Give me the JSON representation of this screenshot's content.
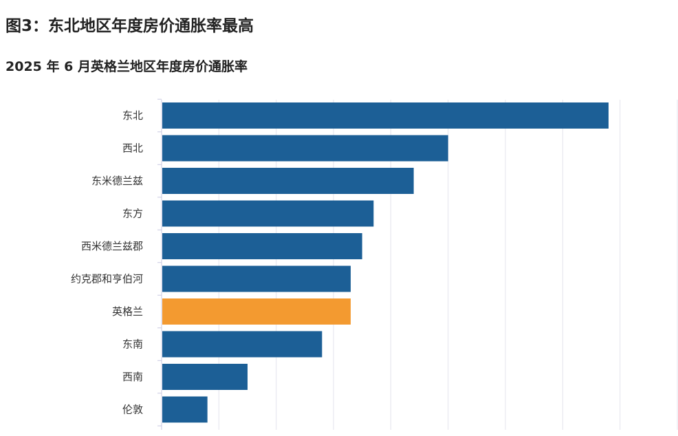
{
  "title": "图3：东北地区年度房价通胀率最高",
  "subtitle": "2025 年 6 月英格兰地区年度房价通胀率",
  "colors": {
    "bar": "#1c5f96",
    "highlight": "#f39a30",
    "grid": "#e3e3ec",
    "axis": "#c8c8e0"
  },
  "chart_data": {
    "type": "bar",
    "orientation": "horizontal",
    "title": "2025 年 6 月英格兰地区年度房价通胀率",
    "xlabel": "",
    "ylabel": "",
    "categories": [
      "东北",
      "西北",
      "东米德兰兹",
      "东方",
      "西米德兰兹郡",
      "约克郡和亨伯河",
      "英格兰",
      "东南",
      "西南",
      "伦敦"
    ],
    "values": [
      7.8,
      5.0,
      4.4,
      3.7,
      3.5,
      3.3,
      3.3,
      2.8,
      1.5,
      0.8
    ],
    "highlight_category": "英格兰",
    "xlim": [
      0,
      9
    ],
    "grid": true,
    "tick_labels_visible": false
  }
}
